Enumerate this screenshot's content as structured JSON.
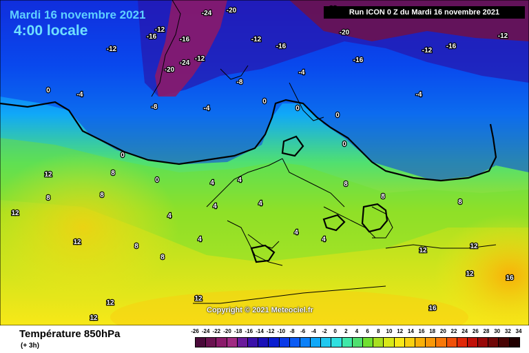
{
  "header": {
    "date_label": "Mardi 16 novembre 2021",
    "time_label": "4:00 locale",
    "run_label": "Run ICON 0 Z du Mardi 16 novembre 2021"
  },
  "map": {
    "copyright": "Copyright © 2021 Meteociel.fr",
    "field_labels": [
      "-20",
      "-24",
      "-20",
      "-12",
      "-16",
      "-12",
      "-16",
      "-12",
      "-24",
      "-20",
      "-20",
      "-16",
      "-12",
      "-16",
      "-16",
      "-12",
      "-12",
      "-8",
      "-8",
      "-4",
      "-4",
      "-4",
      "-4",
      "0",
      "0",
      "0",
      "0",
      "0",
      "0",
      "0",
      "4",
      "4",
      "4",
      "4",
      "4",
      "4",
      "4",
      "4",
      "8",
      "8",
      "8",
      "8",
      "8",
      "8",
      "8",
      "8",
      "12",
      "12",
      "12",
      "12",
      "12",
      "12",
      "12",
      "12",
      "12",
      "16",
      "16"
    ],
    "colors": {
      "contour_line": "#000000",
      "label_text": "#ffffff"
    }
  },
  "footer": {
    "variable": "Température 850hPa",
    "lead_time": "(+ 3h)"
  },
  "legend": {
    "ticks": [
      "-26",
      "-24",
      "-22",
      "-20",
      "-18",
      "-16",
      "-14",
      "-12",
      "-10",
      "-8",
      "-6",
      "-4",
      "-2",
      "0",
      "2",
      "4",
      "6",
      "8",
      "10",
      "12",
      "14",
      "16",
      "18",
      "20",
      "22",
      "24",
      "26",
      "28",
      "30",
      "32",
      "34"
    ],
    "colors": [
      "#4a0a3a",
      "#6a1250",
      "#8a1a6a",
      "#a02a82",
      "#6a1a9a",
      "#3a10a8",
      "#1a10b8",
      "#0a1ed0",
      "#0a3ae8",
      "#0a5af4",
      "#0a80f8",
      "#10a8f8",
      "#20c8f0",
      "#30e0e0",
      "#40e8a8",
      "#50e070",
      "#70e030",
      "#a8e020",
      "#d8e818",
      "#f8e818",
      "#f8d010",
      "#f8b008",
      "#f89808",
      "#f87808",
      "#f05008",
      "#e02808",
      "#c01008",
      "#980808",
      "#700808",
      "#480404",
      "#200000"
    ]
  }
}
